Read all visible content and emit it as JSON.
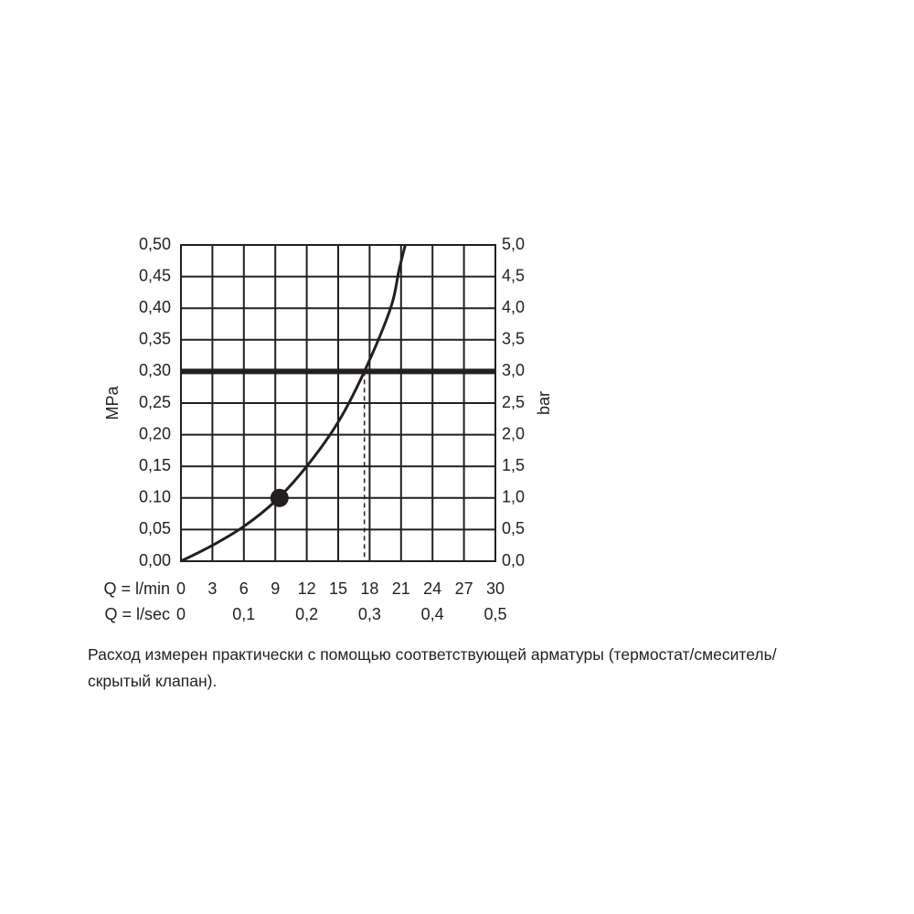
{
  "chart_data": {
    "type": "line",
    "ylabel": "MPa",
    "y2label": "bar",
    "xlabel": "Q = l/min",
    "x2label": "Q = l/sec",
    "xlim": [
      0,
      30
    ],
    "xticks": [
      0,
      3,
      6,
      9,
      12,
      15,
      18,
      21,
      24,
      27,
      30
    ],
    "x2lim": [
      0,
      0.5
    ],
    "x2ticks": [
      0,
      {
        "value": 0.1,
        "label": "0,1"
      },
      {
        "value": 0.2,
        "label": "0,2"
      },
      {
        "value": 0.3,
        "label": "0,3"
      },
      {
        "value": 0.4,
        "label": "0,4"
      },
      {
        "value": 0.5,
        "label": "0,5"
      }
    ],
    "ylim": [
      0,
      0.5
    ],
    "yticks": [
      {
        "value": 0,
        "label": "0,00"
      },
      {
        "value": 0.05,
        "label": "0,05"
      },
      {
        "value": 0.1,
        "label": "0.10"
      },
      {
        "value": 0.15,
        "label": "0,15"
      },
      {
        "value": 0.2,
        "label": "0,20"
      },
      {
        "value": 0.25,
        "label": "0,25"
      },
      {
        "value": 0.3,
        "label": "0,30"
      },
      {
        "value": 0.35,
        "label": "0,35"
      },
      {
        "value": 0.4,
        "label": "0,40"
      },
      {
        "value": 0.45,
        "label": "0,45"
      },
      {
        "value": 0.5,
        "label": "0,50"
      }
    ],
    "y2lim": [
      0,
      5
    ],
    "y2ticks": [
      {
        "value": 0,
        "label": "0,0"
      },
      {
        "value": 0.5,
        "label": "0,5"
      },
      {
        "value": 1,
        "label": "1,0"
      },
      {
        "value": 1.5,
        "label": "1,5"
      },
      {
        "value": 2,
        "label": "2,0"
      },
      {
        "value": 2.5,
        "label": "2,5"
      },
      {
        "value": 3,
        "label": "3,0"
      },
      {
        "value": 3.5,
        "label": "3,5"
      },
      {
        "value": 4,
        "label": "4,0"
      },
      {
        "value": 4.5,
        "label": "4,5"
      },
      {
        "value": 5,
        "label": "5,0"
      }
    ],
    "grid": true,
    "color": "#231f20",
    "series": [
      {
        "color": "#231f20",
        "x": [
          0,
          3,
          6,
          9,
          12,
          15,
          17.5,
          20,
          20.8,
          21.4
        ],
        "values": [
          0,
          0.025,
          0.055,
          0.095,
          0.15,
          0.22,
          0.3,
          0.4,
          0.46,
          0.5
        ]
      }
    ],
    "marker": {
      "x": 9.4,
      "y": 0.1
    },
    "reference_y": 0.3,
    "reference_x": 17.5,
    "note": "Расход измерен практически с помощью соответствующей арматуры (термостат/смеситель/скрытый клапан)."
  }
}
